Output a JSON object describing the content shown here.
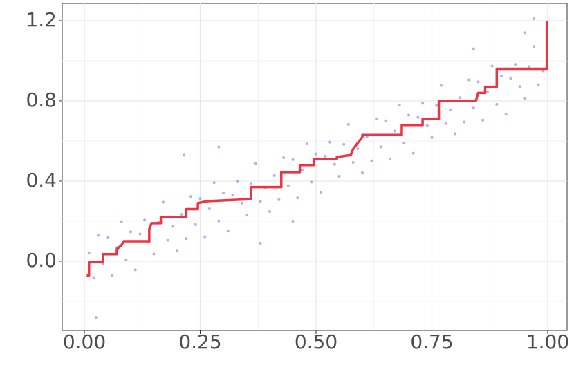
{
  "chart_data": {
    "type": "scatter",
    "xlim": [
      -0.0478,
      1.0418
    ],
    "ylim": [
      -0.345,
      1.286
    ],
    "xticks": [
      {
        "value": 0,
        "label": "0.00"
      },
      0.25,
      {
        "value": 0.5,
        "label": "0.50"
      },
      0.75,
      {
        "value": 1,
        "label": "1.00"
      }
    ],
    "yticks": [
      {
        "value": 0,
        "label": "0.0"
      },
      0.4,
      0.8,
      1.2
    ],
    "xminor": [
      0.125,
      0.375,
      0.625,
      0.875
    ],
    "yminor": [
      -0.2,
      0.2,
      0.6,
      1.0
    ],
    "grid": true,
    "points": {
      "color": "#6f6fe8",
      "x": [
        0.01,
        0.02,
        0.03,
        0.04,
        0.05,
        0.06,
        0.07,
        0.08,
        0.09,
        0.1,
        0.11,
        0.12,
        0.13,
        0.14,
        0.15,
        0.16,
        0.17,
        0.18,
        0.19,
        0.2,
        0.21,
        0.22,
        0.23,
        0.24,
        0.25,
        0.26,
        0.27,
        0.28,
        0.29,
        0.3,
        0.31,
        0.32,
        0.33,
        0.34,
        0.35,
        0.36,
        0.37,
        0.38,
        0.39,
        0.4,
        0.41,
        0.42,
        0.43,
        0.44,
        0.45,
        0.46,
        0.47,
        0.48,
        0.49,
        0.5,
        0.51,
        0.52,
        0.53,
        0.54,
        0.55,
        0.56,
        0.57,
        0.58,
        0.59,
        0.6,
        0.61,
        0.62,
        0.63,
        0.64,
        0.65,
        0.66,
        0.67,
        0.68,
        0.69,
        0.7,
        0.71,
        0.72,
        0.73,
        0.74,
        0.75,
        0.76,
        0.77,
        0.78,
        0.79,
        0.8,
        0.81,
        0.82,
        0.83,
        0.84,
        0.85,
        0.86,
        0.87,
        0.88,
        0.89,
        0.9,
        0.91,
        0.92,
        0.93,
        0.94,
        0.95,
        0.96,
        0.97,
        0.98,
        0.99,
        0.025,
        0.215,
        0.29,
        0.38,
        0.45,
        0.84,
        0.97,
        0.95
      ],
      "y": [
        0.04,
        -0.081,
        0.129,
        -0.011,
        0.119,
        -0.072,
        0.068,
        0.198,
        0.007,
        0.147,
        -0.043,
        0.136,
        0.206,
        0.096,
        0.036,
        0.195,
        0.295,
        0.105,
        0.174,
        0.054,
        0.234,
        0.113,
        0.323,
        0.183,
        0.313,
        0.122,
        0.262,
        0.392,
        0.201,
        0.341,
        0.151,
        0.33,
        0.4,
        0.29,
        0.23,
        0.389,
        0.489,
        0.299,
        0.368,
        0.248,
        0.428,
        0.307,
        0.517,
        0.377,
        0.507,
        0.316,
        0.456,
        0.586,
        0.395,
        0.535,
        0.345,
        0.524,
        0.594,
        0.484,
        0.424,
        0.583,
        0.683,
        0.493,
        0.562,
        0.442,
        0.622,
        0.501,
        0.711,
        0.571,
        0.701,
        0.51,
        0.65,
        0.78,
        0.589,
        0.729,
        0.539,
        0.718,
        0.788,
        0.678,
        0.618,
        0.777,
        0.877,
        0.687,
        0.756,
        0.636,
        0.816,
        0.695,
        0.905,
        0.765,
        0.895,
        0.704,
        0.844,
        0.974,
        0.783,
        0.923,
        0.733,
        0.912,
        0.982,
        0.872,
        0.812,
        0.971,
        1.071,
        0.881,
        0.95,
        -0.28,
        0.53,
        0.57,
        0.09,
        0.2,
        1.06,
        1.21,
        1.14
      ]
    },
    "step": {
      "color": "#ee3344",
      "x": [
        0.005,
        0.01,
        0.01,
        0.04,
        0.04,
        0.07,
        0.07,
        0.08,
        0.085,
        0.14,
        0.14,
        0.145,
        0.165,
        0.165,
        0.22,
        0.22,
        0.245,
        0.245,
        0.265,
        0.36,
        0.36,
        0.425,
        0.425,
        0.465,
        0.465,
        0.495,
        0.495,
        0.545,
        0.545,
        0.575,
        0.58,
        0.59,
        0.6,
        0.6,
        0.685,
        0.685,
        0.73,
        0.73,
        0.765,
        0.765,
        0.845,
        0.85,
        0.865,
        0.865,
        0.89,
        0.89,
        0.998,
        0.998
      ],
      "y": [
        -0.07,
        -0.07,
        -0.005,
        -0.005,
        0.035,
        0.035,
        0.06,
        0.08,
        0.1,
        0.1,
        0.16,
        0.19,
        0.19,
        0.22,
        0.22,
        0.26,
        0.26,
        0.29,
        0.3,
        0.31,
        0.37,
        0.37,
        0.445,
        0.445,
        0.48,
        0.48,
        0.51,
        0.51,
        0.52,
        0.53,
        0.56,
        0.59,
        0.62,
        0.63,
        0.63,
        0.68,
        0.68,
        0.71,
        0.71,
        0.8,
        0.8,
        0.84,
        0.84,
        0.87,
        0.87,
        0.96,
        0.96,
        1.2
      ]
    }
  }
}
